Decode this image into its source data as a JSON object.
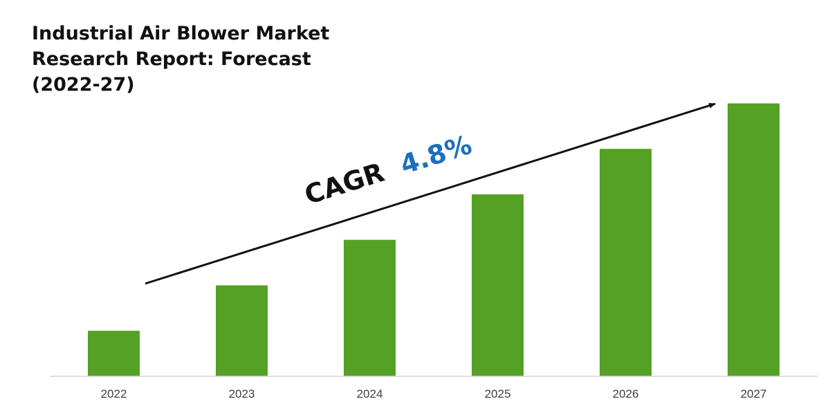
{
  "chart_data": {
    "type": "bar",
    "title_lines": [
      "Industrial Air Blower Market",
      "Research Report: Forecast",
      "(2022-27)"
    ],
    "categories": [
      "2022",
      "2023",
      "2024",
      "2025",
      "2026",
      "2027"
    ],
    "values": [
      1.0,
      2.0,
      3.0,
      4.0,
      5.0,
      6.0
    ],
    "ylim": [
      0,
      6.6
    ],
    "xlabel": "",
    "ylabel": "",
    "grid": false,
    "legend": "none",
    "annotation": {
      "label": "CAGR",
      "value": "4.8%"
    },
    "colors": {
      "bar": "#55a125",
      "axis": "#d0d0d0",
      "annotation_text": "#111111",
      "annotation_value": "#1f6fbf",
      "arrow": "#111111"
    }
  }
}
